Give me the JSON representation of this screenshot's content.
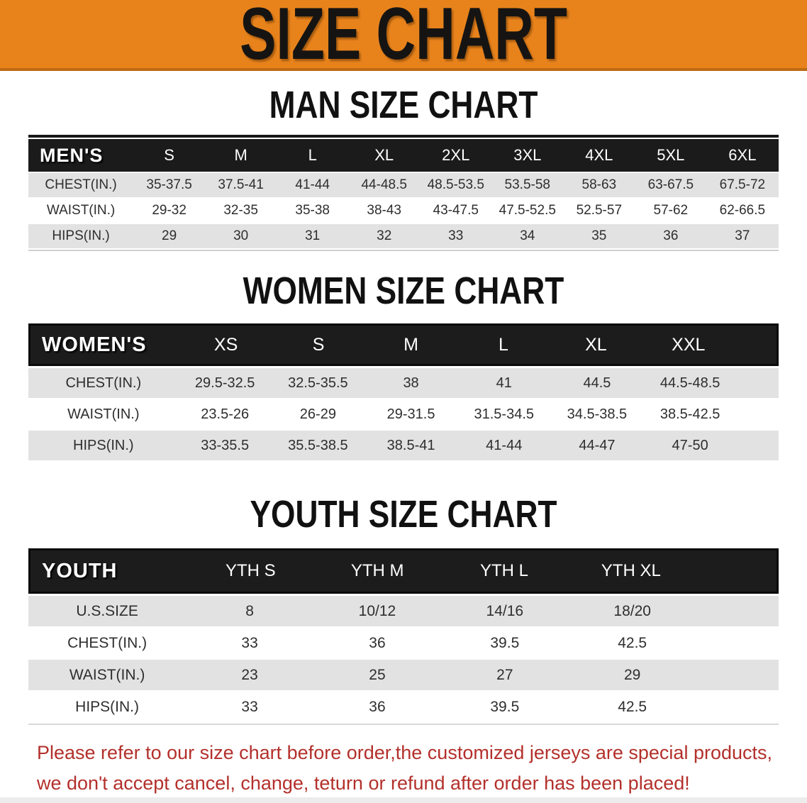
{
  "banner": {
    "title": "SIZE CHART"
  },
  "colors": {
    "banner_bg": "#E8831C",
    "banner_edge": "#BD6A12",
    "banner_text": "#161412",
    "table_header_bg": "#1B1B1B",
    "table_header_text": "#FFFFFF",
    "row_alt_bg": "#E2E2E2",
    "row_bg": "#FFFFFF",
    "cell_text": "#2E2E2E",
    "footer_text": "#B3302B"
  },
  "sections": [
    {
      "heading": "MAN SIZE CHART",
      "table": {
        "corner_label": "MEN'S",
        "columns": [
          "S",
          "M",
          "L",
          "XL",
          "2XL",
          "3XL",
          "4XL",
          "5XL",
          "6XL"
        ],
        "rows": [
          {
            "label": "CHEST(IN.)",
            "values": [
              "35-37.5",
              "37.5-41",
              "41-44",
              "44-48.5",
              "48.5-53.5",
              "53.5-58",
              "58-63",
              "63-67.5",
              "67.5-72"
            ]
          },
          {
            "label": "WAIST(IN.)",
            "values": [
              "29-32",
              "32-35",
              "35-38",
              "38-43",
              "43-47.5",
              "47.5-52.5",
              "52.5-57",
              "57-62",
              "62-66.5"
            ]
          },
          {
            "label": "HIPS(IN.)",
            "values": [
              "29",
              "30",
              "31",
              "32",
              "33",
              "34",
              "35",
              "36",
              "37"
            ]
          }
        ]
      }
    },
    {
      "heading": "WOMEN SIZE CHART",
      "table": {
        "corner_label": "WOMEN'S",
        "columns": [
          "XS",
          "S",
          "M",
          "L",
          "XL",
          "XXL"
        ],
        "rows": [
          {
            "label": "CHEST(IN.)",
            "values": [
              "29.5-32.5",
              "32.5-35.5",
              "38",
              "41",
              "44.5",
              "44.5-48.5"
            ]
          },
          {
            "label": "WAIST(IN.)",
            "values": [
              "23.5-26",
              "26-29",
              "29-31.5",
              "31.5-34.5",
              "34.5-38.5",
              "38.5-42.5"
            ]
          },
          {
            "label": "HIPS(IN.)",
            "values": [
              "33-35.5",
              "35.5-38.5",
              "38.5-41",
              "41-44",
              "44-47",
              "47-50"
            ]
          }
        ]
      }
    },
    {
      "heading": "YOUTH SIZE CHART",
      "table": {
        "corner_label": "YOUTH",
        "columns": [
          "YTH S",
          "YTH M",
          "YTH L",
          "YTH XL"
        ],
        "rows": [
          {
            "label": "U.S.SIZE",
            "values": [
              "8",
              "10/12",
              "14/16",
              "18/20"
            ]
          },
          {
            "label": "CHEST(IN.)",
            "values": [
              "33",
              "36",
              "39.5",
              "42.5"
            ]
          },
          {
            "label": "WAIST(IN.)",
            "values": [
              "23",
              "25",
              "27",
              "29"
            ]
          },
          {
            "label": "HIPS(IN.)",
            "values": [
              "33",
              "36",
              "39.5",
              "42.5"
            ]
          }
        ]
      }
    }
  ],
  "footer": {
    "line1": "Please refer to our size chart before order,the customized jerseys are special products,",
    "line2": "we don't accept cancel, change, teturn or refund after order has been placed!"
  }
}
